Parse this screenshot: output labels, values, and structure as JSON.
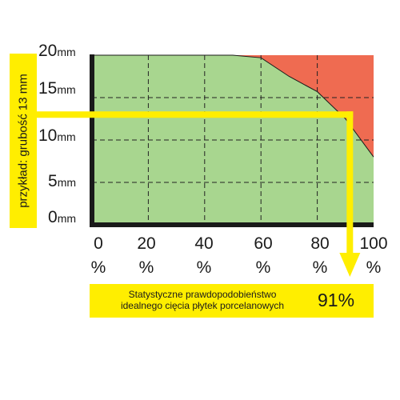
{
  "chart_data": {
    "type": "area",
    "x": [
      0,
      20,
      40,
      50,
      60,
      70,
      80,
      90,
      100
    ],
    "y_ideal": [
      20,
      20,
      20,
      20,
      19.7,
      17.5,
      15.7,
      12.5,
      8
    ],
    "xlim": [
      0,
      100
    ],
    "ylim": [
      0,
      20
    ],
    "x_ticks": [
      {
        "value": 0,
        "num": "0",
        "unit": "%"
      },
      {
        "value": 20,
        "num": "20",
        "unit": "%"
      },
      {
        "value": 40,
        "num": "40",
        "unit": "%"
      },
      {
        "value": 60,
        "num": "60",
        "unit": "%"
      },
      {
        "value": 80,
        "num": "80",
        "unit": "%"
      },
      {
        "value": 100,
        "num": "100",
        "unit": "%"
      }
    ],
    "y_ticks": [
      {
        "value": 20,
        "num": "20",
        "unit": "mm"
      },
      {
        "value": 15,
        "num": "15",
        "unit": "mm"
      },
      {
        "value": 10,
        "num": "10",
        "unit": "mm"
      },
      {
        "value": 5,
        "num": "5",
        "unit": "mm"
      },
      {
        "value": 0,
        "num": "0",
        "unit": "mm"
      }
    ],
    "grid": true,
    "example": {
      "thickness_mm": 13,
      "probability_pct": 91,
      "label": "przykład: grubość 13 mm",
      "result_line1": "Statystyczne prawdopodobieństwo",
      "result_line2": "idealnego cięcia płytek porcelanowych",
      "result_value": "91%"
    },
    "colors": {
      "ideal_area": "#a8d68f",
      "failure_area": "#ef6b51",
      "highlight": "#ffee00",
      "axis": "#1a1a1a"
    }
  }
}
